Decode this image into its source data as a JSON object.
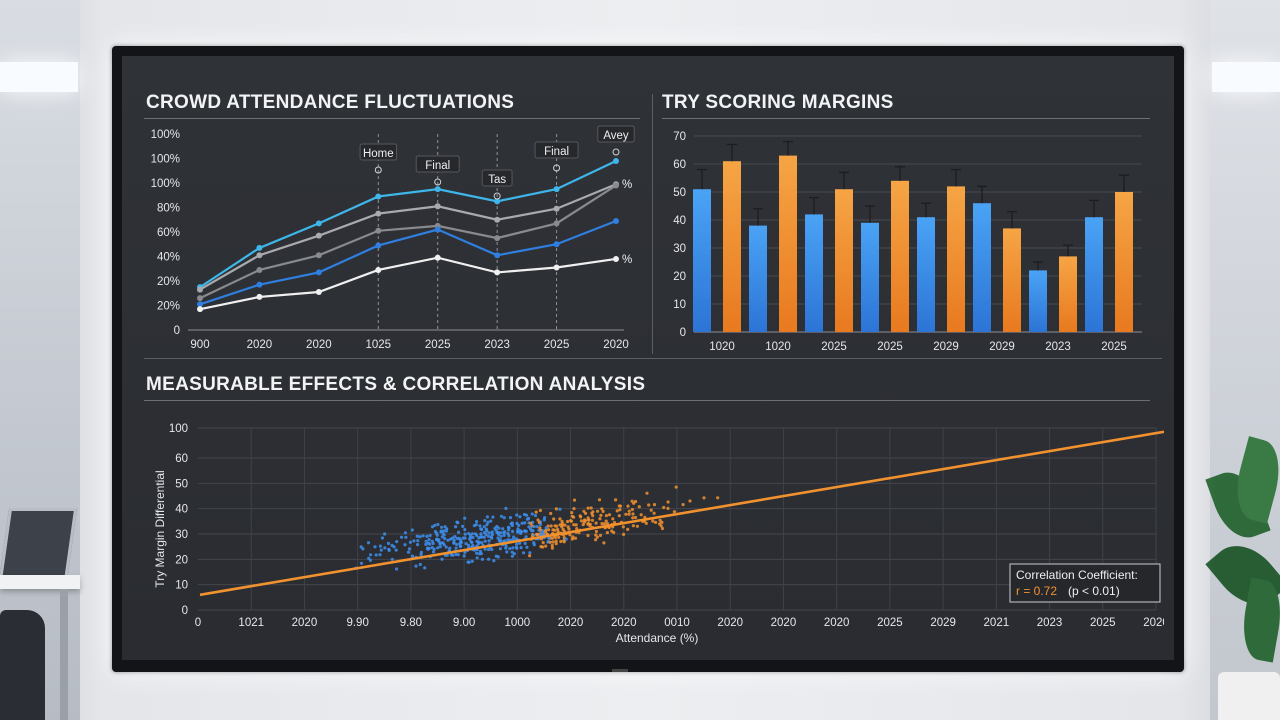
{
  "panels": {
    "attendance": {
      "title": "CROWD ATTENDANCE FLUCTUATIONS"
    },
    "margins": {
      "title": "TRY SCORING MARGINS"
    },
    "correlation": {
      "title": "MEASURABLE EFFECTS & CORRELATION ANALYSIS"
    }
  },
  "chart_data": [
    {
      "type": "line",
      "title": "CROWD ATTENDANCE FLUCTUATIONS",
      "x": [
        "900",
        "2020",
        "2020",
        "1025",
        "2025",
        "2023",
        "2025",
        "2020"
      ],
      "y_ticks": [
        "0",
        "20%",
        "20%",
        "40%",
        "60%",
        "80%",
        "100%",
        "100%",
        "100%"
      ],
      "ylim": [
        0,
        8
      ],
      "grid": false,
      "series": [
        {
          "color": "#3fb6ea",
          "values": [
            1.75,
            3.35,
            4.35,
            5.45,
            5.75,
            5.25,
            5.75,
            6.9
          ]
        },
        {
          "color": "#a8aaae",
          "values": [
            1.65,
            3.05,
            3.85,
            4.75,
            5.05,
            4.5,
            4.95,
            5.95
          ]
        },
        {
          "color": "#888a8e",
          "values": [
            1.3,
            2.45,
            3.05,
            4.05,
            4.25,
            3.75,
            4.35,
            5.9
          ]
        },
        {
          "color": "#2f7fe0",
          "values": [
            1.05,
            1.85,
            2.35,
            3.45,
            4.1,
            3.05,
            3.5,
            4.45
          ]
        },
        {
          "color": "#f0f0f0",
          "values": [
            0.85,
            1.35,
            1.55,
            2.45,
            2.95,
            2.35,
            2.55,
            2.9
          ]
        }
      ],
      "annotations": [
        {
          "text": "Home",
          "at": 3
        },
        {
          "text": "Final",
          "at": 4
        },
        {
          "text": "Tas",
          "at": 5
        },
        {
          "text": "Final",
          "at": 6
        },
        {
          "text": "Avey",
          "at": 7
        }
      ],
      "end_labels": [
        "%",
        "%"
      ]
    },
    {
      "type": "bar",
      "title": "TRY SCORING MARGINS",
      "categories": [
        "1020",
        "1020",
        "2025",
        "2025",
        "2029",
        "2029",
        "2023",
        "2025"
      ],
      "ylim": [
        0,
        70
      ],
      "y_ticks": [
        0,
        10,
        20,
        30,
        40,
        50,
        60,
        70
      ],
      "grid": true,
      "series": [
        {
          "color": "#3d8ff0",
          "values": [
            51,
            38,
            42,
            39,
            41,
            46,
            22,
            41
          ],
          "errors": [
            7,
            6,
            6,
            6,
            5,
            6,
            3,
            6
          ]
        },
        {
          "color": "#f2922f",
          "values": [
            61,
            63,
            51,
            54,
            52,
            37,
            27,
            50
          ],
          "errors": [
            6,
            5,
            6,
            5,
            6,
            6,
            4,
            6
          ]
        }
      ]
    },
    {
      "type": "scatter",
      "title": "MEASURABLE EFFECTS & CORRELATION ANALYSIS",
      "xlabel": "Attendance (%)",
      "ylabel": "Try Margin Differential",
      "x_ticks": [
        "0",
        "1021",
        "2020",
        "9.90",
        "9.80",
        "9.00",
        "1000",
        "2020",
        "2020",
        "0010",
        "2020",
        "2020",
        "2020",
        "2025",
        "2029",
        "2021",
        "2023",
        "2025",
        "2020"
      ],
      "y_ticks": [
        0,
        10,
        20,
        30,
        40,
        50,
        60,
        100
      ],
      "ylim": [
        0,
        100
      ],
      "grid": true,
      "series_colors": [
        "#3d8ff0",
        "#f2922f"
      ],
      "trend_line": {
        "color": "#f2922f",
        "y_start": 6,
        "y_end": 95
      },
      "annotation": {
        "heading": "Correlation Coefficient:",
        "r_value": "r = 0.72",
        "p_value": "(p < 0.01)"
      }
    }
  ]
}
